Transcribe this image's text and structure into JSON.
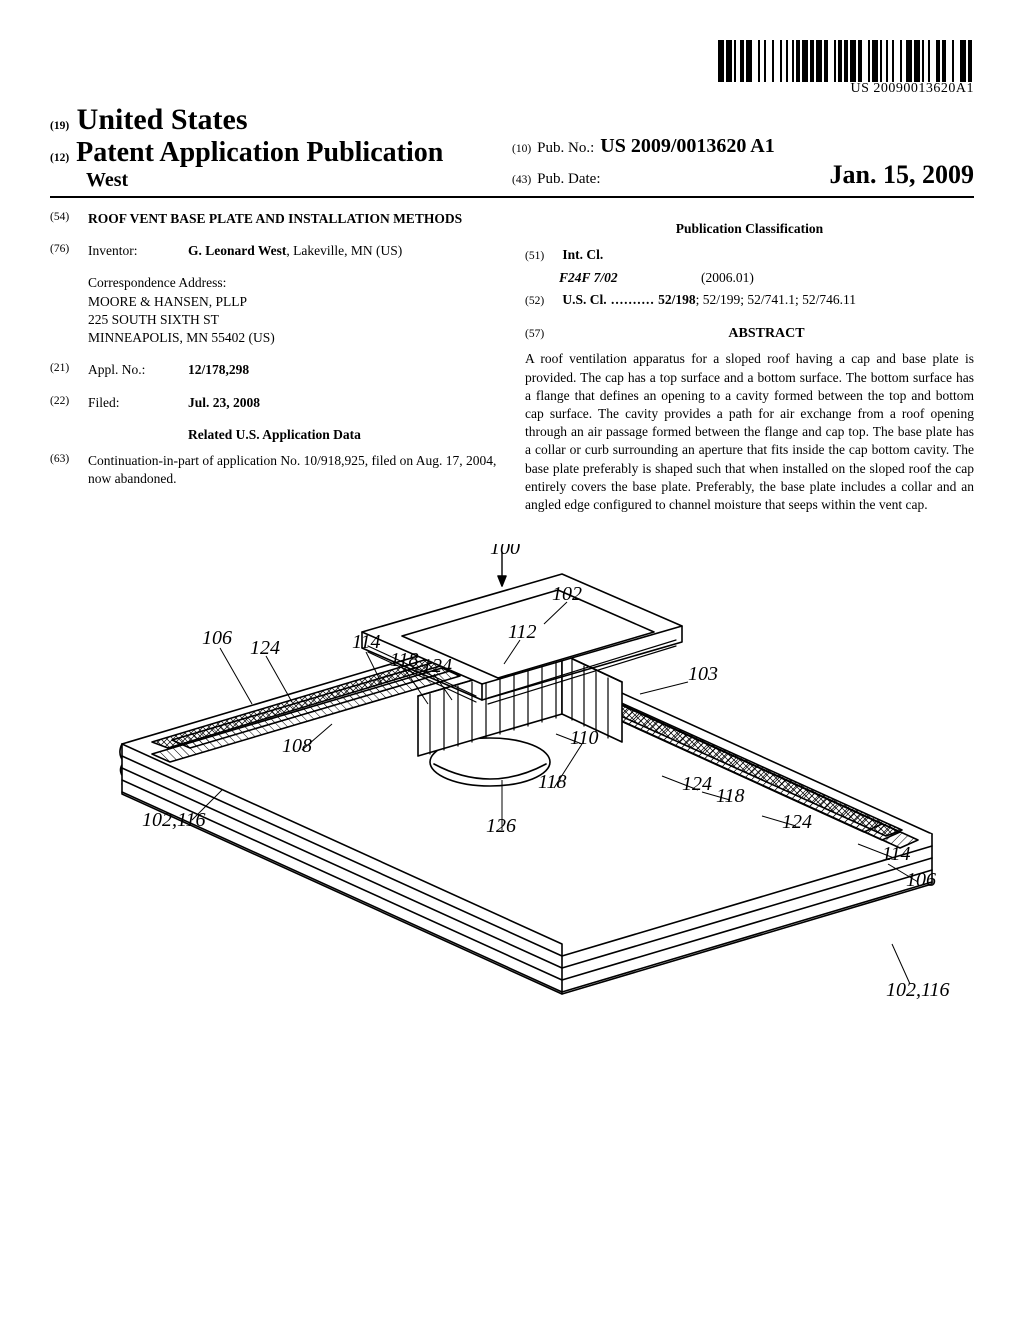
{
  "barcode": {
    "number": "US 20090013620A1",
    "bars": [
      3,
      1,
      3,
      1,
      1,
      2,
      2,
      1,
      3,
      3,
      1,
      2,
      1,
      3,
      1,
      3,
      1,
      2,
      1,
      2,
      1,
      1,
      2,
      1,
      3,
      1,
      2,
      1,
      3,
      1,
      2,
      3,
      1,
      1,
      2,
      1,
      2,
      1,
      3,
      1,
      2,
      3,
      1,
      1,
      3,
      1,
      1,
      2,
      1,
      2,
      1,
      3,
      1,
      2,
      3,
      1,
      3,
      1,
      1,
      2,
      1,
      3,
      2,
      1,
      2,
      3,
      1,
      3,
      3,
      1,
      2,
      1
    ],
    "bar_color": "#000000"
  },
  "header": {
    "line19_code": "(19)",
    "country": "United States",
    "line12_code": "(12)",
    "pap_title": "Patent Application Publication",
    "inventor_surname": "West",
    "pubno_code": "(10)",
    "pubno_label": "Pub. No.:",
    "pubno_value": "US 2009/0013620 A1",
    "pubdate_code": "(43)",
    "pubdate_label": "Pub. Date:",
    "pubdate_value": "Jan. 15, 2009"
  },
  "left": {
    "title_code": "(54)",
    "invention_title": "ROOF VENT BASE PLATE AND INSTALLATION METHODS",
    "inventor_code": "(76)",
    "inventor_label": "Inventor:",
    "inventor_value": "G. Leonard West, Lakeville, MN (US)",
    "corr_label": "Correspondence Address:",
    "corr_line1": "MOORE & HANSEN, PLLP",
    "corr_line2": "225 SOUTH SIXTH ST",
    "corr_line3": "MINNEAPOLIS, MN 55402 (US)",
    "applno_code": "(21)",
    "applno_label": "Appl. No.:",
    "applno_value": "12/178,298",
    "filed_code": "(22)",
    "filed_label": "Filed:",
    "filed_value": "Jul. 23, 2008",
    "related_hd": "Related U.S. Application Data",
    "related_code": "(63)",
    "related_text": "Continuation-in-part of application No. 10/918,925, filed on Aug. 17, 2004, now abandoned."
  },
  "right": {
    "pubclass_hd": "Publication Classification",
    "intcl_code": "(51)",
    "intcl_label": "Int. Cl.",
    "intcl_class": "F24F 7/02",
    "intcl_date": "(2006.01)",
    "uscl_code": "(52)",
    "uscl_label": "U.S. Cl.",
    "uscl_value": "52/198; 52/199; 52/741.1; 52/746.11",
    "abstract_code": "(57)",
    "abstract_hd": "ABSTRACT",
    "abstract_text": "A roof ventilation apparatus for a sloped roof having a cap and base plate is provided. The cap has a top surface and a bottom surface. The bottom surface has a flange that defines an opening to a cavity formed between the top and bottom cap surface. The cavity provides a path for air exchange from a roof opening through an air passage formed between the flange and cap top. The base plate has a collar or curb surrounding an aperture that fits inside the cap bottom cavity. The base plate preferably is shaped such that when installed on the sloped roof the cap entirely covers the base plate. Preferably, the base plate includes a collar and an angled edge configured to channel moisture that seeps within the vent cap."
  },
  "figure": {
    "main_ref": "100",
    "callouts": [
      "102",
      "103",
      "106",
      "108",
      "110",
      "112",
      "114",
      "118",
      "124",
      "126",
      "102,116"
    ]
  }
}
